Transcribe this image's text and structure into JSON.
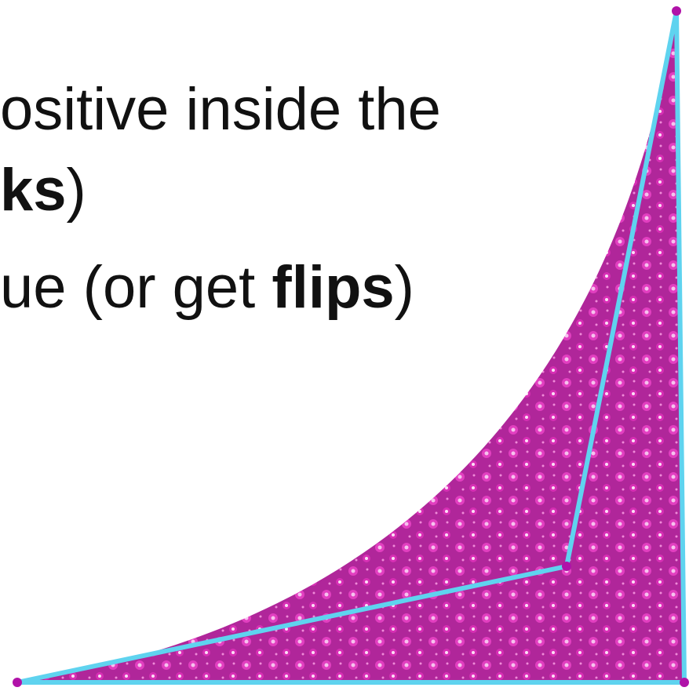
{
  "lines": [
    {
      "segments": [
        {
          "text": "ositive inside the",
          "bold": false
        }
      ]
    },
    {
      "segments": [
        {
          "text": "ks",
          "bold": true
        },
        {
          "text": ")",
          "bold": false
        }
      ]
    },
    {
      "segments": [
        {
          "text": "ue (or get ",
          "bold": false
        },
        {
          "text": "flips",
          "bold": true
        },
        {
          "text": ")",
          "bold": false
        }
      ]
    }
  ]
}
